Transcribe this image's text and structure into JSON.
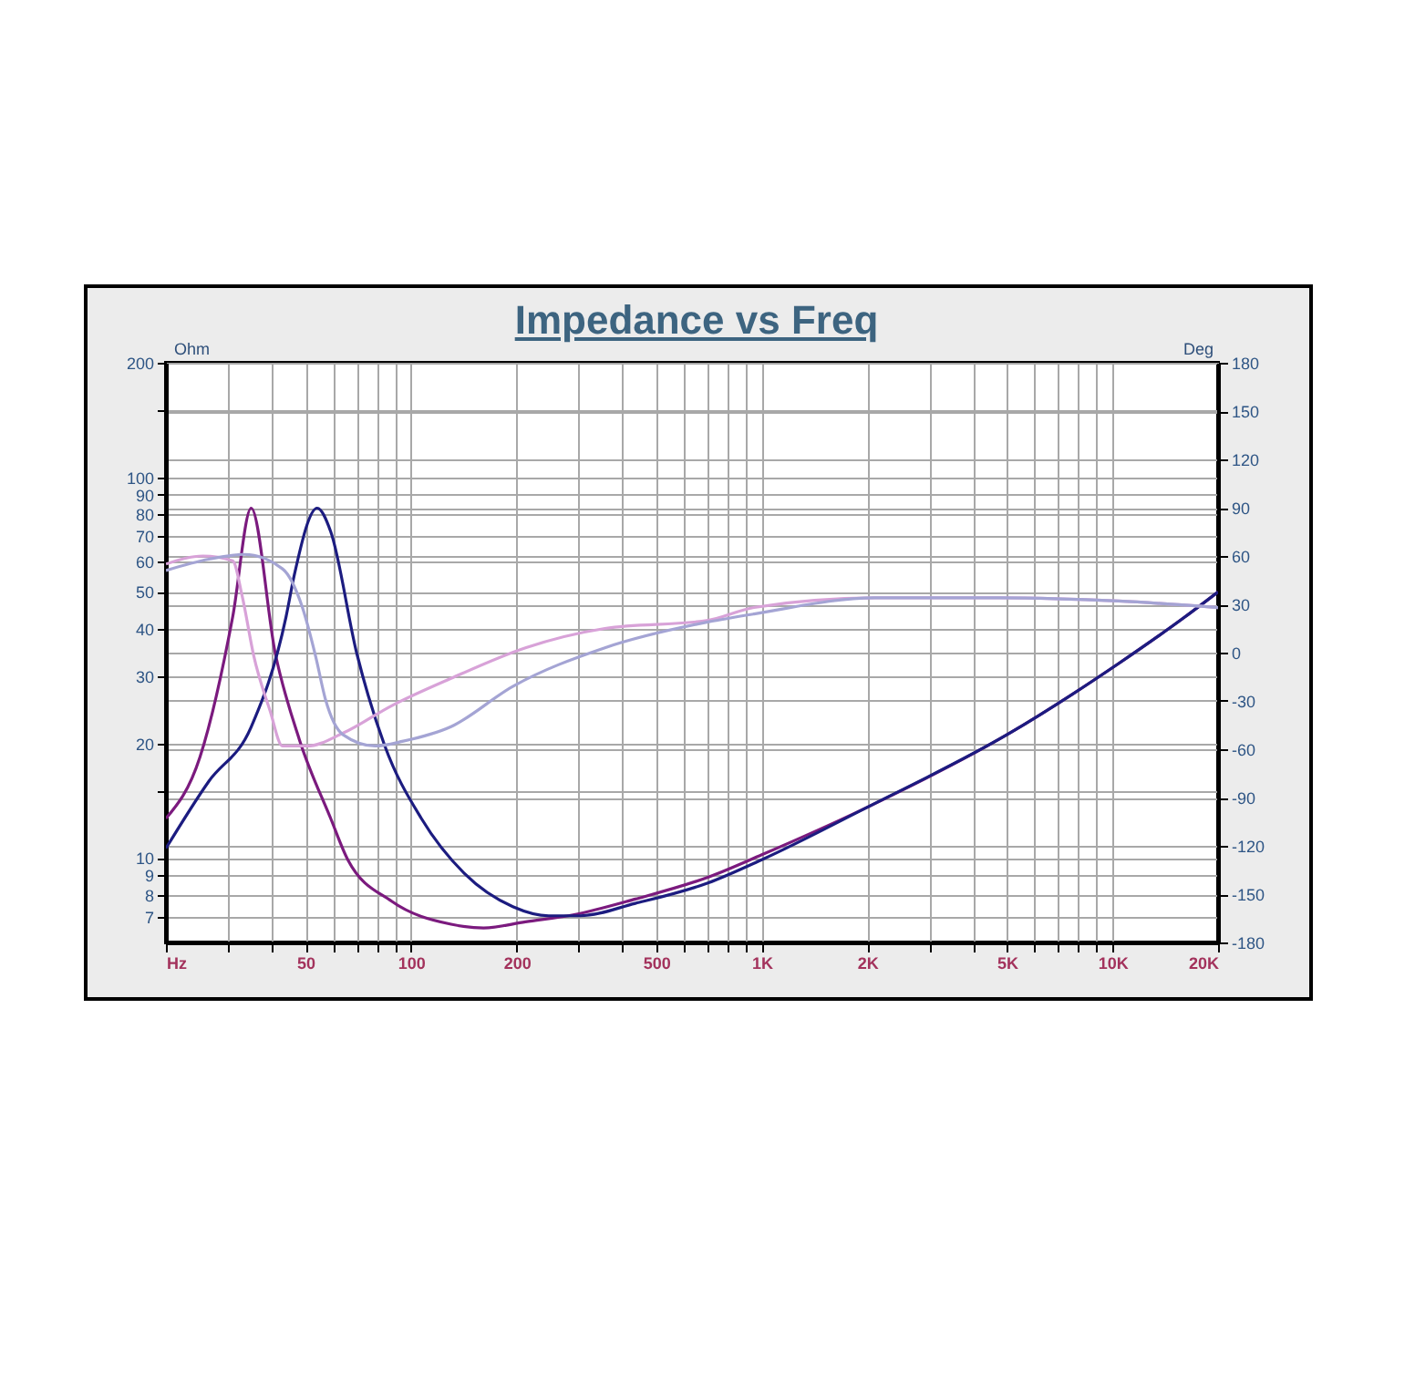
{
  "chart_data": {
    "type": "line",
    "title": "Impedance vs Freq",
    "ylabel": "Ohm",
    "y2label": "Deg",
    "log": "xy",
    "grid": true,
    "xlim": [
      20,
      20000
    ],
    "xticks": [
      {
        "value": 20,
        "label": "Hz"
      },
      {
        "value": 30,
        "label": null
      },
      {
        "value": 40,
        "label": null
      },
      50,
      {
        "value": 60,
        "label": null
      },
      {
        "value": 70,
        "label": null
      },
      {
        "value": 80,
        "label": null
      },
      {
        "value": 90,
        "label": null
      },
      100,
      200,
      {
        "value": 300,
        "label": null
      },
      {
        "value": 400,
        "label": null
      },
      500,
      {
        "value": 600,
        "label": null
      },
      {
        "value": 700,
        "label": null
      },
      {
        "value": 800,
        "label": null
      },
      {
        "value": 900,
        "label": null
      },
      {
        "value": 1000,
        "label": "1K"
      },
      {
        "value": 2000,
        "label": "2K"
      },
      {
        "value": 3000,
        "label": null
      },
      {
        "value": 4000,
        "label": null
      },
      {
        "value": 5000,
        "label": "5K"
      },
      {
        "value": 6000,
        "label": null
      },
      {
        "value": 7000,
        "label": null
      },
      {
        "value": 8000,
        "label": null
      },
      {
        "value": 9000,
        "label": null
      },
      {
        "value": 10000,
        "label": "10K"
      },
      {
        "value": 20000,
        "label": "20K"
      }
    ],
    "ylim": [
      6,
      200
    ],
    "yticks": [
      7,
      8,
      9,
      10,
      {
        "value": 15,
        "label": null
      },
      20,
      30,
      40,
      50,
      60,
      70,
      80,
      90,
      100,
      {
        "value": 150,
        "label": null
      },
      200
    ],
    "y2lim": [
      -180,
      180
    ],
    "y2ticks": [
      -180,
      -150,
      -120,
      -90,
      -60,
      -30,
      0,
      30,
      60,
      90,
      120,
      150,
      180
    ],
    "series": [
      {
        "color": "#7b1a7e",
        "x": [
          20,
          25,
          31,
          35,
          41,
          48,
          59,
          66,
          88,
          130,
          161,
          212,
          292,
          436,
          702,
          1000,
          2000,
          5100,
          10500,
          16100,
          20000
        ],
        "values": [
          12.7,
          18.4,
          43,
          83,
          34.5,
          20.5,
          12.7,
          9.9,
          7.7,
          6.7,
          6.55,
          6.8,
          7.1,
          7.8,
          8.9,
          10.2,
          13.6,
          21.3,
          32.6,
          43,
          50
        ]
      },
      {
        "color": "#1c1c80",
        "x": [
          20,
          26.5,
          35,
          44,
          46.5,
          54,
          59,
          70,
          84,
          107,
          142,
          195,
          247,
          303,
          436,
          702,
          1000,
          2000,
          5100,
          10500,
          16100,
          20000
        ],
        "values": [
          10.6,
          15.9,
          22.1,
          43,
          55.6,
          83,
          72,
          34.5,
          19.8,
          12.7,
          9.1,
          7.45,
          7.05,
          7.05,
          7.6,
          8.6,
          9.9,
          13.6,
          21.3,
          32.6,
          43,
          50
        ]
      },
      {
        "color": "#d8a2d8",
        "axis": "y2",
        "x": [
          20,
          25.5,
          31,
          33,
          35.6,
          39.6,
          43,
          50.6,
          64,
          88,
          130,
          212,
          357,
          702,
          950,
          2100,
          4760,
          10400,
          20000
        ],
        "values": [
          55,
          60,
          57,
          35,
          -2,
          -36,
          -58,
          -58,
          -50,
          -33,
          -16,
          3,
          15,
          20,
          28,
          34,
          34,
          32,
          28
        ]
      },
      {
        "color": "#a4a4d4",
        "axis": "y2",
        "x": [
          20,
          26.5,
          33.5,
          43,
          49,
          53.4,
          57,
          64,
          79,
          95,
          130,
          195,
          357,
          702,
          950,
          2100,
          4760,
          10400,
          20000
        ],
        "values": [
          51,
          58,
          61,
          52,
          28,
          -2,
          -29,
          -51,
          -58,
          -55,
          -46,
          -21,
          3,
          19,
          24,
          34,
          34,
          32,
          28
        ]
      }
    ]
  }
}
